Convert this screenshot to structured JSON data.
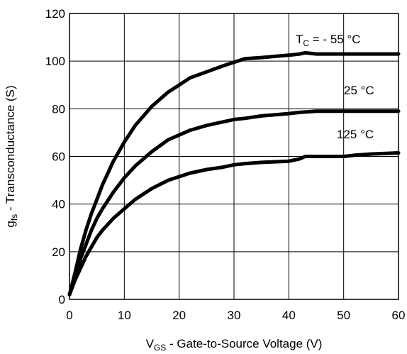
{
  "chart_data": {
    "type": "line",
    "title": "",
    "xlabel": {
      "prefix": "V",
      "sub": "GS",
      "rest": " - Gate-to-Source Voltage (V)"
    },
    "ylabel": {
      "prefix": "g",
      "sub": "fs",
      "rest": " - Transconductance (S)"
    },
    "xlim": [
      0,
      60
    ],
    "ylim": [
      0,
      120
    ],
    "xticks": [
      0,
      10,
      20,
      30,
      40,
      50,
      60
    ],
    "yticks": [
      0,
      20,
      40,
      60,
      80,
      100,
      120
    ],
    "grid": true,
    "series": [
      {
        "label": {
          "prefix": "T",
          "sub": "C",
          "rest": " = - 55 °C"
        },
        "x": [
          0,
          1,
          2,
          3,
          4,
          5,
          6,
          8,
          10,
          12,
          15,
          18,
          20,
          22,
          25,
          28,
          30,
          32,
          35,
          40,
          42,
          43,
          45,
          50,
          55,
          60
        ],
        "y": [
          2,
          11,
          21,
          29,
          36,
          42,
          48,
          58,
          66,
          73,
          81,
          87,
          90,
          93,
          95.5,
          98,
          99.5,
          101,
          101.5,
          102.5,
          103,
          103.5,
          103,
          103,
          103,
          103
        ]
      },
      {
        "label": {
          "prefix": "",
          "sub": "",
          "rest": "25 °C"
        },
        "x": [
          0,
          1,
          2,
          3,
          4,
          5,
          6,
          8,
          10,
          12,
          15,
          18,
          20,
          22,
          25,
          28,
          30,
          32,
          35,
          40,
          42,
          45,
          50,
          55,
          60
        ],
        "y": [
          2,
          9,
          17,
          23,
          29,
          34,
          38,
          45,
          51,
          56,
          62,
          67,
          69,
          71,
          73,
          74.5,
          75.5,
          76,
          77,
          78,
          78.5,
          79,
          79,
          79,
          79
        ]
      },
      {
        "label": {
          "prefix": "",
          "sub": "",
          "rest": "125 °C"
        },
        "x": [
          0,
          1,
          2,
          3,
          4,
          5,
          6,
          8,
          10,
          12,
          15,
          18,
          20,
          22,
          25,
          28,
          30,
          32,
          35,
          40,
          42,
          43,
          45,
          50,
          52,
          55,
          60
        ],
        "y": [
          2,
          8,
          13,
          18,
          22,
          26,
          29,
          34,
          38,
          42,
          46.5,
          50,
          51.5,
          53,
          54.5,
          55.5,
          56.5,
          57,
          57.5,
          58,
          59,
          60,
          60,
          60,
          60.5,
          61,
          61.5
        ]
      }
    ]
  }
}
